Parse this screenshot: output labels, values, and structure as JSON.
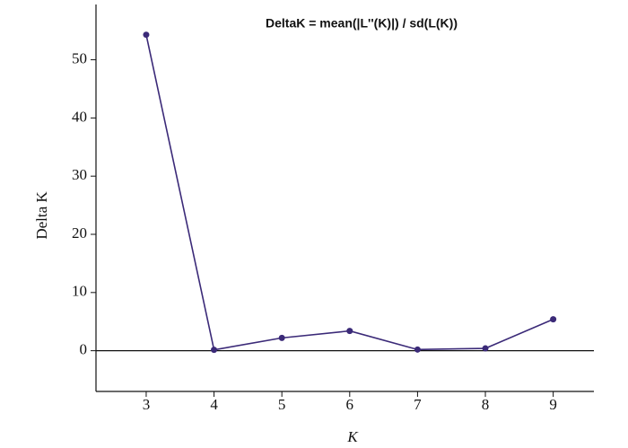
{
  "chart_data": {
    "type": "line",
    "title": "DeltaK = mean(|L''(K)|) / sd(L(K))",
    "xlabel": "K",
    "ylabel": "Delta K",
    "x": [
      3,
      4,
      5,
      6,
      7,
      8,
      9
    ],
    "series": [
      {
        "color": "#3b2a78",
        "values": [
          54.3,
          0.15,
          2.2,
          3.4,
          0.2,
          0.4,
          5.4
        ]
      }
    ],
    "xlim": [
      2.26,
      9.6
    ],
    "ylim": [
      -7,
      59.5
    ],
    "xticks": [
      3,
      4,
      5,
      6,
      7,
      8,
      9
    ],
    "yticks": [
      0,
      10,
      20,
      30,
      40,
      50
    ],
    "hline": 0
  }
}
